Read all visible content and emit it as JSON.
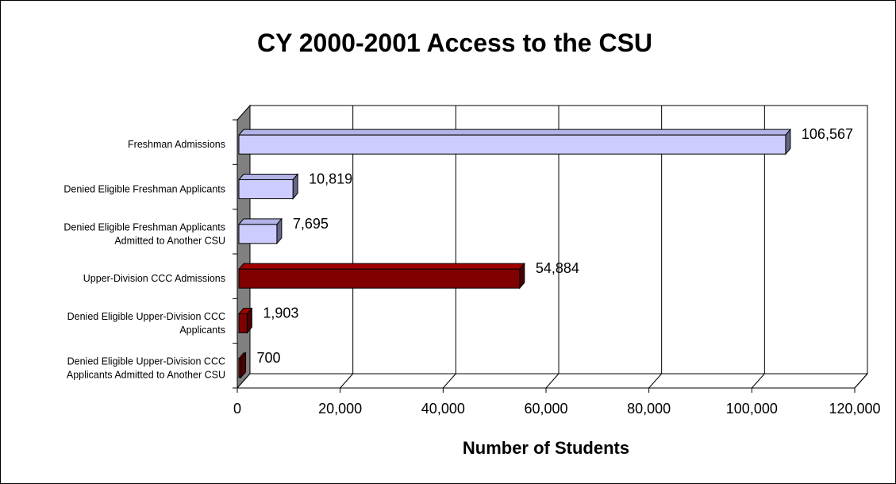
{
  "chart_data": {
    "type": "bar",
    "orientation": "horizontal",
    "title": "CY 2000-2001 Access to the CSU",
    "xlabel": "Number of Students",
    "ylabel": "",
    "xlim": [
      0,
      120000
    ],
    "x_ticks": [
      "0",
      "20,000",
      "40,000",
      "60,000",
      "80,000",
      "100,000",
      "120,000"
    ],
    "grid": true,
    "legend": "none",
    "bars": [
      {
        "label": [
          "Freshman Admissions"
        ],
        "value": 106567,
        "value_label": "106,567",
        "color": "#CCCCFF"
      },
      {
        "label": [
          "Denied Eligible Freshman Applicants"
        ],
        "value": 10819,
        "value_label": "10,819",
        "color": "#CCCCFF"
      },
      {
        "label": [
          "Denied Eligible Freshman Applicants",
          "Admitted to Another CSU"
        ],
        "value": 7695,
        "value_label": "7,695",
        "color": "#CCCCFF"
      },
      {
        "label": [
          "Upper-Division CCC Admissions"
        ],
        "value": 54884,
        "value_label": "54,884",
        "color": "#800000"
      },
      {
        "label": [
          "Denied Eligible Upper-Division CCC",
          "Applicants"
        ],
        "value": 1903,
        "value_label": "1,903",
        "color": "#800000"
      },
      {
        "label": [
          "Denied Eligible Upper-Division CCC",
          "Applicants Admitted to Another CSU"
        ],
        "value": 700,
        "value_label": "700",
        "color": "#800000"
      }
    ]
  }
}
